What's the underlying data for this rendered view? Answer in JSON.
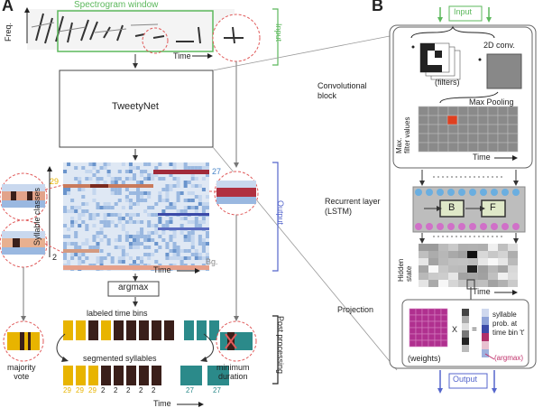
{
  "panel_a": {
    "letter": "A",
    "spectrogram_window": "Spectrogram window",
    "freq_label": "Freq.",
    "time_label": "Time",
    "input_label": "Input",
    "network_label": "TweetyNet",
    "syllable_classes_label": "Syllable classes",
    "class_top": "27",
    "class_bottom": "Bg.",
    "class_left_top": "29",
    "class_left_bottom": "2",
    "output_label": "Output",
    "argmax_label": "argmax",
    "labeled_time_bins": "labeled time bins",
    "segmented_syllables": "segmented syllables",
    "majority_vote": "majority\nvote",
    "minimum_duration": "minimum\nduration",
    "post_processing": "Post processing",
    "segment_labels": [
      "29",
      "29",
      "29",
      "2",
      "2",
      "2",
      "2",
      "2",
      "27",
      "27"
    ],
    "time_axis_bottom": "Time"
  },
  "panel_b": {
    "letter": "B",
    "input_label": "Input",
    "conv_block": "Convolutional\nblock",
    "conv2d": "2D conv.",
    "filters": "(filters)",
    "max_pooling": "Max Pooling",
    "max_filter_values": "Max.\nfilter values",
    "time_label": "Time",
    "recurrent_layer": "Recurrent layer\n(LSTM)",
    "b_label": "B",
    "f_label": "F",
    "hidden_state": "Hidden\nstate",
    "projection": "Projection",
    "weights": "(weights)",
    "times": "X",
    "equals": "=",
    "syllable_prob": "syllable\nprob. at\ntime bin 't'",
    "argmax": "(argmax)",
    "output_label": "Output"
  },
  "colors": {
    "green": "#5cb85c",
    "blue": "#5566cc",
    "red_dashed": "#e05a5a",
    "yellow": "#e8b400",
    "dark_brown": "#3a1f1a",
    "teal": "#2b8a8a",
    "magenta": "#b0308f",
    "cell_blue": "#6aaee0"
  }
}
